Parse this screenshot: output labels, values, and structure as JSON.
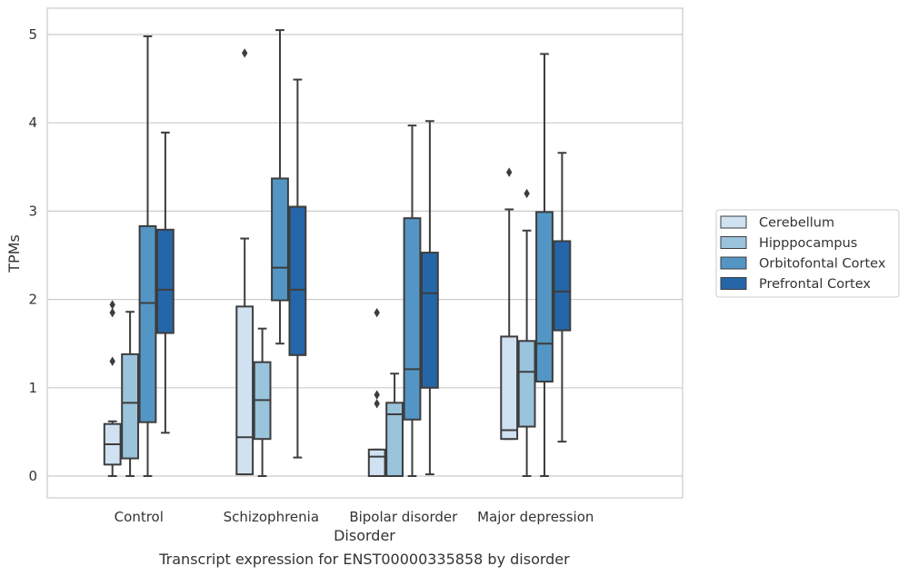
{
  "caption": "Transcript expression for ENST00000335858 by disorder",
  "chart_data": {
    "type": "box",
    "title": "",
    "xlabel": "Disorder",
    "ylabel": "TPMs",
    "ylim": [
      -0.25,
      5.3
    ],
    "yticks": [
      "0",
      "1",
      "2",
      "3",
      "4",
      "5"
    ],
    "categories": [
      "Control",
      "Schizophrenia",
      "Bipolar disorder",
      "Major depression"
    ],
    "grid": "horizontal",
    "legend_position": "right",
    "series": [
      {
        "name": "Cerebellum",
        "color": "#d0e1f2",
        "boxes": [
          {
            "whislo": 0.0,
            "q1": 0.13,
            "med": 0.36,
            "q3": 0.59,
            "whishi": 0.62,
            "fliers": [
              1.3,
              1.85,
              1.94
            ]
          },
          {
            "whislo": 0.02,
            "q1": 0.02,
            "med": 0.44,
            "q3": 1.92,
            "whishi": 2.69,
            "fliers": [
              4.79
            ]
          },
          {
            "whislo": 0.0,
            "q1": 0.0,
            "med": 0.22,
            "q3": 0.3,
            "whishi": 0.3,
            "fliers": [
              0.82,
              0.92,
              1.85
            ]
          },
          {
            "whislo": 0.42,
            "q1": 0.42,
            "med": 0.52,
            "q3": 1.58,
            "whishi": 3.02,
            "fliers": [
              3.44
            ]
          }
        ]
      },
      {
        "name": "Hipppocampus",
        "color": "#9ac3dc",
        "boxes": [
          {
            "whislo": 0.0,
            "q1": 0.2,
            "med": 0.83,
            "q3": 1.38,
            "whishi": 1.86,
            "fliers": []
          },
          {
            "whislo": 0.0,
            "q1": 0.42,
            "med": 0.86,
            "q3": 1.29,
            "whishi": 1.67,
            "fliers": []
          },
          {
            "whislo": 0.0,
            "q1": 0.0,
            "med": 0.7,
            "q3": 0.83,
            "whishi": 1.16,
            "fliers": []
          },
          {
            "whislo": 0.0,
            "q1": 0.56,
            "med": 1.18,
            "q3": 1.53,
            "whishi": 2.78,
            "fliers": [
              3.2
            ]
          }
        ]
      },
      {
        "name": "Orbitofontal Cortex",
        "color": "#5396c5",
        "boxes": [
          {
            "whislo": 0.0,
            "q1": 0.61,
            "med": 1.96,
            "q3": 2.83,
            "whishi": 4.98,
            "fliers": []
          },
          {
            "whislo": 1.5,
            "q1": 1.99,
            "med": 2.36,
            "q3": 3.37,
            "whishi": 5.05,
            "fliers": []
          },
          {
            "whislo": 0.0,
            "q1": 0.64,
            "med": 1.21,
            "q3": 2.92,
            "whishi": 3.97,
            "fliers": []
          },
          {
            "whislo": 0.0,
            "q1": 1.07,
            "med": 1.5,
            "q3": 2.99,
            "whishi": 4.78,
            "fliers": []
          }
        ]
      },
      {
        "name": "Prefrontal Cortex",
        "color": "#2566a8",
        "boxes": [
          {
            "whislo": 0.49,
            "q1": 1.62,
            "med": 2.11,
            "q3": 2.79,
            "whishi": 3.89,
            "fliers": []
          },
          {
            "whislo": 0.21,
            "q1": 1.37,
            "med": 2.11,
            "q3": 3.05,
            "whishi": 4.49,
            "fliers": []
          },
          {
            "whislo": 0.02,
            "q1": 1.0,
            "med": 2.07,
            "q3": 2.53,
            "whishi": 4.02,
            "fliers": []
          },
          {
            "whislo": 0.39,
            "q1": 1.65,
            "med": 2.09,
            "q3": 2.66,
            "whishi": 3.66,
            "fliers": []
          }
        ]
      }
    ]
  }
}
